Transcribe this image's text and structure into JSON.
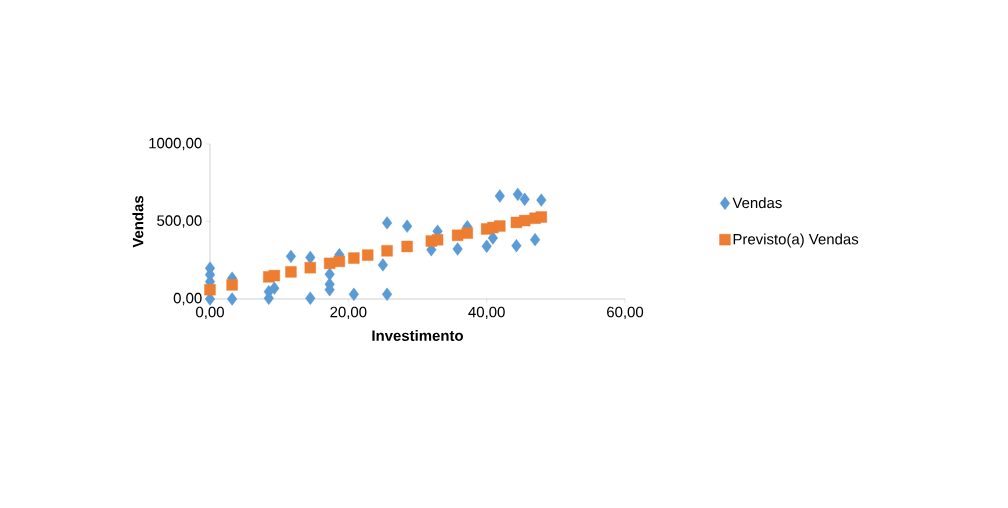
{
  "chart_data": {
    "type": "scatter",
    "xlabel": "Investimento",
    "ylabel": "Vendas",
    "xlim": [
      0,
      60
    ],
    "ylim": [
      0,
      1000
    ],
    "xticks": [
      {
        "value": 0,
        "label": "0,00"
      },
      {
        "value": 20,
        "label": "20,00"
      },
      {
        "value": 40,
        "label": "40,00"
      },
      {
        "value": 60,
        "label": "60,00"
      }
    ],
    "yticks": [
      {
        "value": 0,
        "label": "0,00"
      },
      {
        "value": 500,
        "label": "500,00"
      },
      {
        "value": 1000,
        "label": "1000,00"
      }
    ],
    "grid": false,
    "legend": "right",
    "series": [
      {
        "name": "Vendas",
        "color": "#5b9bd5",
        "marker": "diamond",
        "x": [
          0,
          0,
          0,
          0,
          3.2,
          3.2,
          8.5,
          8.5,
          9.3,
          11.7,
          14.5,
          14.5,
          17.3,
          17.3,
          17.3,
          18.7,
          20.8,
          25,
          25.6,
          25.6,
          28.5,
          32,
          32.9,
          35.8,
          37.2,
          40,
          40.9,
          41.9,
          44.3,
          44.5,
          45.5,
          47,
          47.9
        ],
        "values": [
          0,
          112,
          156,
          199,
          134,
          0,
          47,
          5,
          70,
          275,
          268,
          5,
          160,
          95,
          60,
          285,
          30,
          220,
          491,
          30,
          470,
          318,
          437,
          323,
          466,
          340,
          394,
          664,
          344,
          675,
          643,
          383,
          638
        ]
      },
      {
        "name": "Previsto(a) Vendas",
        "color": "#ed7d31",
        "marker": "square",
        "x": [
          0,
          3.2,
          8.5,
          9.3,
          11.7,
          14.5,
          17.3,
          18.7,
          20.8,
          22.8,
          25,
          25.6,
          28.5,
          32,
          32.9,
          35.8,
          37.2,
          40,
          40.9,
          41.9,
          44.3,
          45.5,
          47,
          47.9
        ],
        "values": [
          60,
          91,
          143,
          151,
          175,
          202,
          230,
          243,
          264,
          283,
          null,
          311,
          339,
          374,
          382,
          411,
          425,
          452,
          461,
          471,
          494,
          506,
          521,
          529
        ]
      }
    ]
  }
}
